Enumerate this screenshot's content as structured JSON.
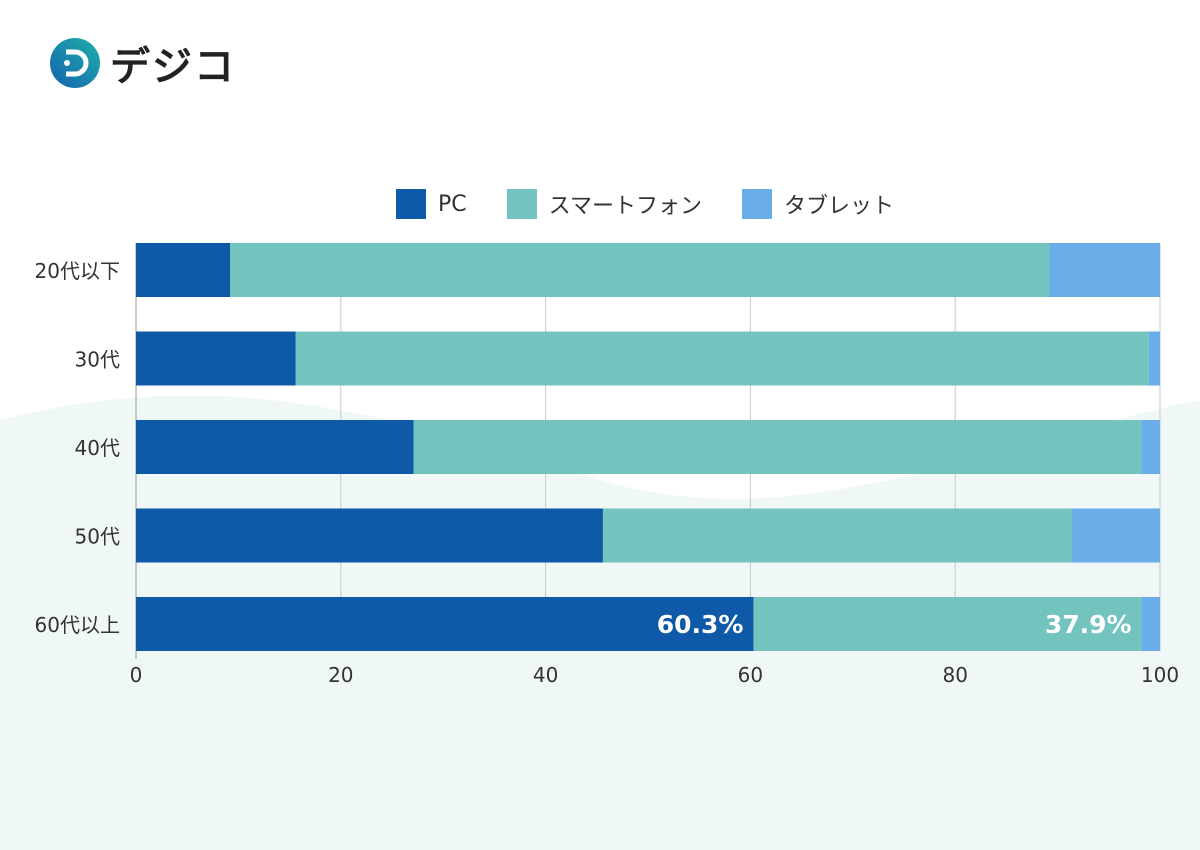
{
  "logo": {
    "text": "デジコ"
  },
  "colors": {
    "pc": "#0f5aa8",
    "smartphone": "#73c3bf",
    "tablet": "#6aaee9",
    "grid": "#c8c8c8"
  },
  "chart_data": {
    "type": "bar",
    "orientation": "horizontal",
    "stacked": true,
    "categories": [
      "20代以下",
      "30代",
      "40代",
      "50代",
      "60代以上"
    ],
    "series": [
      {
        "name": "PC",
        "values": [
          9.2,
          15.6,
          27.1,
          45.6,
          60.3
        ]
      },
      {
        "name": "スマートフォン",
        "values": [
          80.0,
          83.3,
          71.1,
          45.8,
          37.9
        ]
      },
      {
        "name": "タブレット",
        "values": [
          10.8,
          1.1,
          1.8,
          8.6,
          1.8
        ]
      }
    ],
    "data_labels": [
      {
        "category": "60代以上",
        "series": "PC",
        "text": "60.3%"
      },
      {
        "category": "60代以上",
        "series": "スマートフォン",
        "text": "37.9%"
      }
    ],
    "xlim": [
      0,
      100
    ],
    "xticks": [
      "0",
      "20",
      "40",
      "60",
      "80",
      "100"
    ],
    "grid": true,
    "legend_position": "top"
  }
}
